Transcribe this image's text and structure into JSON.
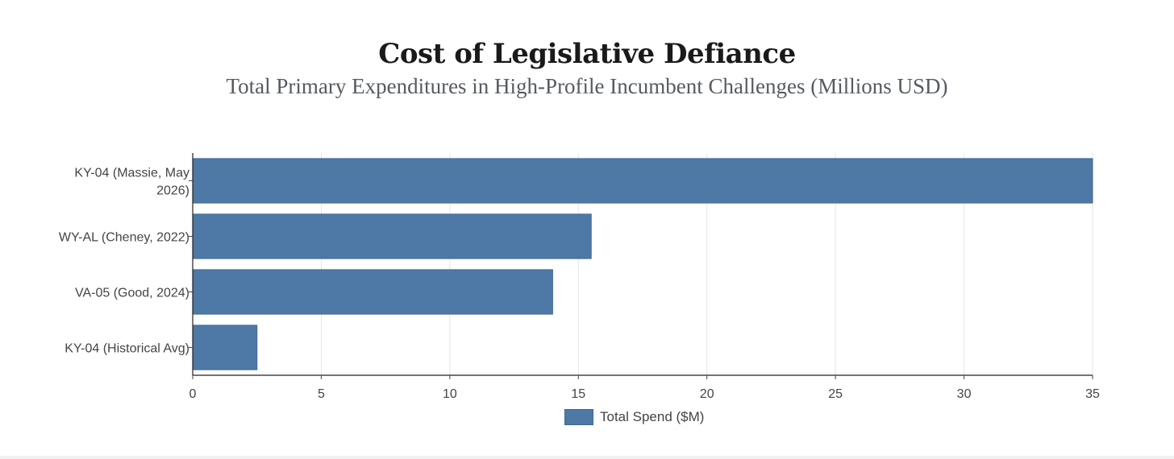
{
  "chart_data": {
    "type": "bar",
    "orientation": "horizontal",
    "title": "Cost of Legislative Defiance",
    "subtitle": "Total Primary Expenditures in High-Profile Incumbent Challenges (Millions USD)",
    "categories": [
      [
        "KY-04 (Massie, May",
        "2026)"
      ],
      [
        "WY-AL (Cheney, 2022)"
      ],
      [
        "VA-05 (Good, 2024)"
      ],
      [
        "KY-04 (Historical Avg)"
      ]
    ],
    "series": [
      {
        "name": "Total Spend ($M)",
        "values": [
          35,
          15.5,
          14,
          2.5
        ],
        "color": "#4e79a7"
      }
    ],
    "xlabel": "",
    "ylabel": "",
    "xlim": [
      0,
      35
    ],
    "xticks": [
      0,
      5,
      10,
      15,
      20,
      25,
      30,
      35
    ],
    "grid": true,
    "legend": "bottom-center"
  }
}
